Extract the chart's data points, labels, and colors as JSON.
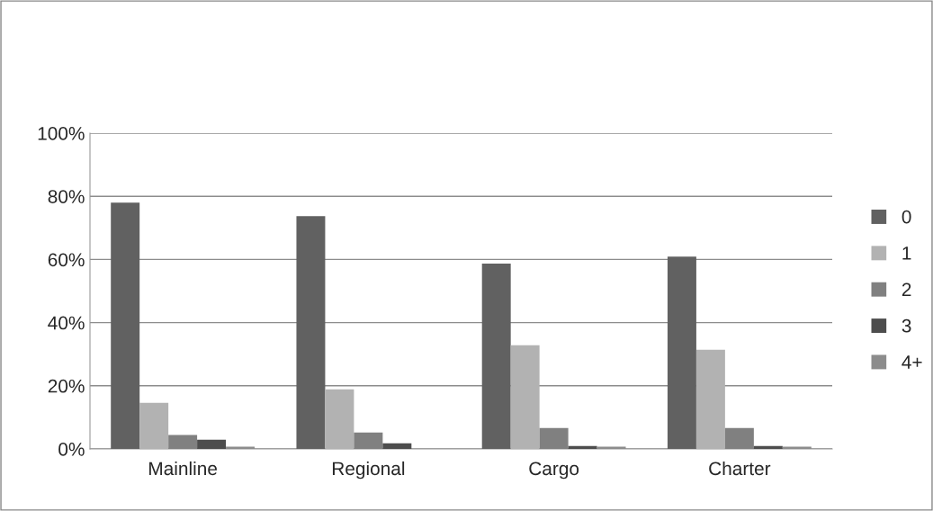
{
  "chart_data": {
    "type": "bar",
    "categories": [
      "Mainline",
      "Regional",
      "Cargo",
      "Charter"
    ],
    "series": [
      {
        "name": "0",
        "color": "#616161",
        "values": [
          78,
          73.7,
          58.7,
          60.9
        ]
      },
      {
        "name": "1",
        "color": "#b2b2b2",
        "values": [
          14.6,
          18.9,
          32.8,
          31.4
        ]
      },
      {
        "name": "2",
        "color": "#808080",
        "values": [
          4.4,
          5.2,
          6.6,
          6.6
        ]
      },
      {
        "name": "3",
        "color": "#4d4d4d",
        "values": [
          2.9,
          1.8,
          0.9,
          0.9
        ]
      },
      {
        "name": "4+",
        "color": "#8c8c8c",
        "values": [
          0.7,
          0,
          0.7,
          0.7
        ]
      }
    ],
    "ylim": [
      0,
      100
    ],
    "yticks": [
      {
        "value": 0,
        "label": "0%"
      },
      {
        "value": 20,
        "label": "20%"
      },
      {
        "value": 40,
        "label": "40%"
      },
      {
        "value": 60,
        "label": "60%"
      },
      {
        "value": 80,
        "label": "80%"
      },
      {
        "value": 100,
        "label": "100%"
      }
    ],
    "grid": "y",
    "legend": "right"
  }
}
